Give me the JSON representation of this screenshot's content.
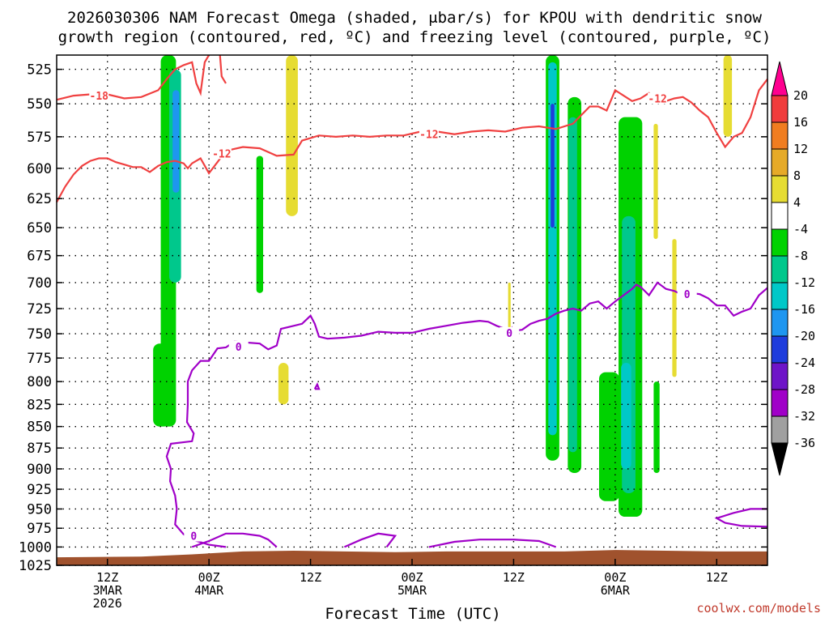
{
  "title_line1": "2026030306 NAM Forecast Omega (shaded, μbar/s) for KPOU with dendritic snow",
  "title_line2": "growth region (contoured, red, ºC) and freezing level (contoured, purple, ºC)",
  "x_axis_title": "Forecast Time (UTC)",
  "credit": "coolwx.com/models",
  "colors": {
    "temp_contour": "#f04040",
    "freezing_contour": "#a000c8",
    "ground": "#a0522d",
    "grid": "#000000"
  },
  "chart_data": {
    "type": "heatmap",
    "ylabel_ticks": [
      "525",
      "550",
      "575",
      "600",
      "625",
      "650",
      "675",
      "700",
      "725",
      "750",
      "775",
      "800",
      "825",
      "850",
      "875",
      "900",
      "925",
      "950",
      "975",
      "1000",
      "1025"
    ],
    "yrange_hPa": [
      515,
      1025
    ],
    "xrange_hours": [
      0,
      84
    ],
    "xticks": [
      {
        "hour": 6,
        "lines": [
          "12Z",
          "3MAR",
          "2026"
        ]
      },
      {
        "hour": 18,
        "lines": [
          "00Z",
          "4MAR"
        ]
      },
      {
        "hour": 30,
        "lines": [
          "12Z"
        ]
      },
      {
        "hour": 42,
        "lines": [
          "00Z",
          "5MAR"
        ]
      },
      {
        "hour": 54,
        "lines": [
          "12Z"
        ]
      },
      {
        "hour": 66,
        "lines": [
          "00Z",
          "6MAR"
        ]
      },
      {
        "hour": 78,
        "lines": [
          "12Z"
        ]
      }
    ],
    "colorbar": {
      "labels": [
        "20",
        "16",
        "12",
        "8",
        "4",
        "-4",
        "-8",
        "-12",
        "-16",
        "-20",
        "-24",
        "-28",
        "-32",
        "-36"
      ],
      "colors": [
        "#ff0090",
        "#f03c3c",
        "#f07d20",
        "#e6aa28",
        "#e6dc32",
        "#ffffff",
        "#00d200",
        "#00c88c",
        "#00c8c8",
        "#1e96f0",
        "#1e3cdc",
        "#6e14c8",
        "#a000c8",
        "#a0a0a0",
        "#000000"
      ]
    },
    "temp_contours": [
      {
        "label": "-18",
        "points": [
          [
            0,
            547
          ],
          [
            2,
            544
          ],
          [
            4,
            543
          ],
          [
            6,
            543
          ],
          [
            8,
            546
          ],
          [
            10,
            545
          ],
          [
            12,
            540
          ],
          [
            13,
            532
          ],
          [
            14,
            525
          ],
          [
            15,
            522
          ],
          [
            16,
            520
          ],
          [
            16.5,
            535
          ],
          [
            17,
            542
          ],
          [
            17.5,
            520
          ],
          [
            18,
            515
          ]
        ]
      },
      {
        "label": "-12",
        "points": [
          [
            0,
            628
          ],
          [
            1,
            615
          ],
          [
            2,
            605
          ],
          [
            3,
            598
          ],
          [
            4,
            594
          ],
          [
            5,
            592
          ],
          [
            6,
            592
          ],
          [
            7,
            595
          ],
          [
            8,
            597
          ],
          [
            9,
            599
          ],
          [
            10,
            599
          ],
          [
            11,
            603
          ],
          [
            12,
            598
          ],
          [
            13,
            595
          ],
          [
            14,
            594
          ],
          [
            15,
            596
          ],
          [
            15.5,
            600
          ],
          [
            16,
            596
          ],
          [
            17,
            592
          ],
          [
            18,
            604
          ],
          [
            19,
            595
          ],
          [
            20,
            586
          ],
          [
            22,
            583
          ],
          [
            24,
            584
          ],
          [
            26,
            590
          ],
          [
            28,
            589
          ],
          [
            29,
            578
          ],
          [
            31,
            574
          ],
          [
            33,
            575
          ],
          [
            35,
            574
          ],
          [
            37,
            575
          ],
          [
            39,
            574
          ],
          [
            41,
            574
          ],
          [
            43,
            571
          ],
          [
            45,
            571
          ],
          [
            47,
            573
          ],
          [
            49,
            571
          ],
          [
            51,
            570
          ],
          [
            53,
            571
          ],
          [
            55,
            568
          ],
          [
            57,
            567
          ],
          [
            59,
            569
          ],
          [
            61,
            565
          ],
          [
            63,
            552
          ],
          [
            64,
            552
          ],
          [
            65,
            555
          ],
          [
            66,
            540
          ],
          [
            67,
            544
          ],
          [
            68,
            548
          ],
          [
            69,
            546
          ],
          [
            70,
            542
          ],
          [
            71,
            546
          ],
          [
            72,
            548
          ],
          [
            73,
            546
          ],
          [
            74,
            545
          ],
          [
            75,
            549
          ],
          [
            76,
            555
          ],
          [
            77,
            560
          ],
          [
            78,
            572
          ],
          [
            79,
            583
          ],
          [
            80,
            575
          ],
          [
            81,
            572
          ],
          [
            82,
            560
          ],
          [
            83,
            540
          ],
          [
            84,
            532
          ]
        ]
      },
      {
        "label": "-12b",
        "points": [
          [
            19.3,
            515
          ],
          [
            19.5,
            530
          ],
          [
            20,
            535
          ]
        ]
      }
    ],
    "freezing_contours": [
      {
        "label": "0",
        "points": [
          [
            20,
            1000
          ],
          [
            18,
            997
          ],
          [
            16,
            990
          ],
          [
            15,
            983
          ],
          [
            14,
            970
          ],
          [
            14.2,
            950
          ],
          [
            14,
            933
          ],
          [
            13.4,
            915
          ],
          [
            13.5,
            900
          ],
          [
            13,
            885
          ],
          [
            13.5,
            870
          ],
          [
            16,
            867
          ],
          [
            16.2,
            858
          ],
          [
            15.4,
            845
          ],
          [
            15.5,
            825
          ],
          [
            15.5,
            800
          ],
          [
            16,
            788
          ],
          [
            17,
            778
          ],
          [
            18,
            778
          ],
          [
            19,
            765
          ],
          [
            20,
            764
          ],
          [
            21,
            758
          ],
          [
            24,
            760
          ],
          [
            25,
            766
          ],
          [
            26,
            762
          ],
          [
            26.5,
            745
          ],
          [
            28,
            742
          ],
          [
            29,
            740
          ],
          [
            30,
            732
          ],
          [
            30.5,
            740
          ],
          [
            31,
            753
          ],
          [
            32,
            755
          ],
          [
            34,
            754
          ],
          [
            36,
            752
          ],
          [
            38,
            748
          ],
          [
            40,
            749
          ],
          [
            42,
            749
          ],
          [
            44,
            745
          ],
          [
            46,
            742
          ],
          [
            48,
            739
          ],
          [
            50,
            737
          ],
          [
            51,
            738
          ],
          [
            52,
            742
          ],
          [
            53,
            745
          ],
          [
            54,
            747
          ],
          [
            55,
            746
          ],
          [
            56,
            740
          ],
          [
            57,
            737
          ],
          [
            58,
            735
          ],
          [
            59,
            730
          ],
          [
            60,
            727
          ],
          [
            61,
            725
          ],
          [
            62,
            727
          ],
          [
            63,
            720
          ],
          [
            64,
            718
          ],
          [
            65,
            725
          ],
          [
            66,
            718
          ],
          [
            67,
            712
          ],
          [
            68,
            706
          ],
          [
            68.5,
            702
          ],
          [
            69,
            704
          ],
          [
            70,
            712
          ],
          [
            71,
            700
          ],
          [
            72,
            706
          ],
          [
            73,
            708
          ],
          [
            74,
            712
          ],
          [
            75,
            710
          ],
          [
            76,
            711
          ],
          [
            77,
            715
          ],
          [
            78,
            722
          ],
          [
            79,
            722
          ],
          [
            80,
            732
          ],
          [
            81,
            728
          ],
          [
            82,
            725
          ],
          [
            83,
            712
          ],
          [
            84,
            705
          ]
        ]
      },
      {
        "label": "0b",
        "points": [
          [
            30.5,
            808
          ],
          [
            30.8,
            803
          ],
          [
            31,
            808
          ],
          [
            30.5,
            808
          ]
        ]
      },
      {
        "label": "0c",
        "points": [
          [
            53.5,
            752
          ],
          [
            53.8,
            745
          ],
          [
            54,
            752
          ]
        ]
      },
      {
        "label": "0d",
        "points": [
          [
            16,
            1000
          ],
          [
            18,
            992
          ],
          [
            20,
            982
          ],
          [
            22,
            982
          ],
          [
            24,
            985
          ],
          [
            25,
            990
          ],
          [
            26,
            1000
          ]
        ]
      },
      {
        "label": "0e",
        "points": [
          [
            34,
            1000
          ],
          [
            36,
            990
          ],
          [
            38,
            982
          ],
          [
            40,
            985
          ],
          [
            39,
            1000
          ]
        ]
      },
      {
        "label": "0f",
        "points": [
          [
            44,
            1000
          ],
          [
            47,
            993
          ],
          [
            50,
            990
          ],
          [
            54,
            990
          ],
          [
            57,
            992
          ],
          [
            59,
            1000
          ]
        ]
      },
      {
        "label": "0g",
        "points": [
          [
            84,
            973
          ],
          [
            81,
            972
          ],
          [
            79,
            968
          ],
          [
            78,
            962
          ],
          [
            80,
            955
          ],
          [
            82,
            950
          ],
          [
            84,
            950
          ]
        ]
      }
    ]
  }
}
